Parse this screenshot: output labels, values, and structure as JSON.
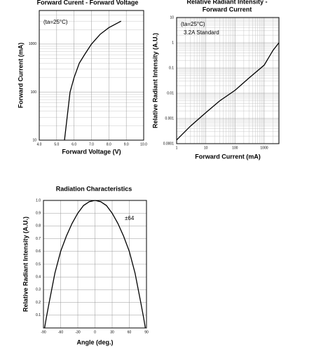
{
  "chart_data": [
    {
      "type": "line",
      "title": [
        "Forward Curent - Forward Voltage"
      ],
      "xlabel": "Forward Voltage (V)",
      "ylabel": "Forward Current (mA)",
      "annotations": [
        "(ta=25°C)"
      ],
      "xscale": "linear",
      "yscale": "log",
      "grid": true,
      "minor_grid": true,
      "color": "#000000",
      "xlim": [
        4,
        10
      ],
      "ylim": [
        10,
        5000
      ],
      "xticks": [
        {
          "value": 4,
          "label": "4.0"
        },
        {
          "value": 5,
          "label": "5.0"
        },
        {
          "value": 6,
          "label": "6.0"
        },
        {
          "value": 7,
          "label": "7.0"
        },
        {
          "value": 8,
          "label": "8.0"
        },
        {
          "value": 9,
          "label": "9.0"
        },
        {
          "value": 10,
          "label": "10.0"
        }
      ],
      "yticks": [
        10,
        100,
        1000
      ],
      "x": [
        5.45,
        5.77,
        6.0,
        6.3,
        6.6,
        7.0,
        7.5,
        8.0,
        8.7
      ],
      "values": [
        10,
        100,
        200,
        400,
        600,
        1000,
        1600,
        2200,
        3000
      ]
    },
    {
      "type": "line",
      "title": [
        "Relative Radiant Intensity -",
        "Forward Current"
      ],
      "xlabel": "Forward Current (mA)",
      "ylabel": "Relative Radiant Intensity (A.U.)",
      "annotations": [
        "(ta=25°C)",
        "3.2A Standard"
      ],
      "xscale": "log",
      "yscale": "log",
      "grid": true,
      "minor_grid": true,
      "color": "#000000",
      "xlim": [
        1,
        3200
      ],
      "ylim": [
        0.0001,
        10
      ],
      "xticks": [
        1,
        10,
        100,
        1000
      ],
      "yticks": [
        0.0001,
        0.001,
        0.01,
        0.1,
        1,
        10
      ],
      "x": [
        1,
        3,
        10,
        30,
        100,
        300,
        1000,
        2000,
        3200
      ],
      "values": [
        0.00014,
        0.0005,
        0.0017,
        0.005,
        0.013,
        0.04,
        0.13,
        0.5,
        1
      ]
    },
    {
      "type": "line",
      "title": [
        "Radiation Characteristics"
      ],
      "xlabel": "Angle (deg.)",
      "ylabel": "Relative Radiant Intensity (A.U.)",
      "annotations": [
        "±64"
      ],
      "xscale": "linear",
      "yscale": "linear",
      "grid": true,
      "minor_grid": false,
      "color": "#000000",
      "xlim": [
        -90,
        90
      ],
      "ylim": [
        0,
        1
      ],
      "xticks": [
        -90,
        -60,
        -30,
        0,
        30,
        60,
        90
      ],
      "yticks": [
        0.1,
        0.2,
        0.3,
        0.4,
        0.5,
        0.6,
        0.7,
        0.8,
        0.9,
        {
          "value": 1,
          "label": "1.0"
        }
      ],
      "x": [
        -88,
        -85,
        -80,
        -70,
        -60,
        -50,
        -40,
        -30,
        -20,
        -10,
        0,
        10,
        20,
        30,
        40,
        50,
        60,
        70,
        80,
        85,
        88
      ],
      "values": [
        0,
        0.08,
        0.2,
        0.43,
        0.6,
        0.72,
        0.82,
        0.9,
        0.96,
        0.99,
        1.0,
        0.99,
        0.96,
        0.9,
        0.82,
        0.72,
        0.6,
        0.43,
        0.2,
        0.08,
        0
      ]
    }
  ]
}
